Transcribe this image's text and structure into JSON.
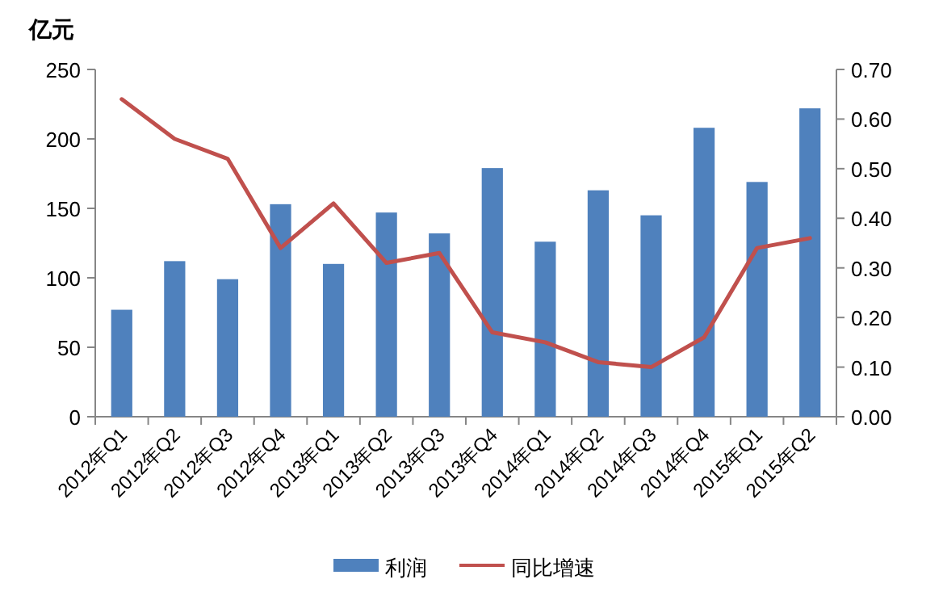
{
  "chart_data": {
    "type": "bar",
    "ylabel": "亿元",
    "legend": "bottom",
    "categories": [
      "2012年Q1",
      "2012年Q2",
      "2012年Q3",
      "2012年Q4",
      "2013年Q1",
      "2013年Q2",
      "2013年Q3",
      "2013年Q4",
      "2014年Q1",
      "2014年Q2",
      "2014年Q3",
      "2014年Q4",
      "2015年Q1",
      "2015年Q2"
    ],
    "series": [
      {
        "name": "利润",
        "color": "#4f81bd",
        "values": [
          77,
          112,
          99,
          153,
          110,
          147,
          132,
          179,
          126,
          163,
          145,
          208,
          169,
          222
        ]
      },
      {
        "name": "同比增速",
        "type": "line",
        "axis": "y2",
        "color": "#c0504d",
        "values": [
          0.64,
          0.56,
          0.52,
          0.34,
          0.43,
          0.31,
          0.33,
          0.17,
          0.15,
          0.11,
          0.1,
          0.16,
          0.34,
          0.36
        ]
      }
    ],
    "ylim": [
      0,
      250
    ],
    "yticks": [
      0,
      50,
      100,
      150,
      200,
      250
    ],
    "y2lim": [
      0,
      0.7
    ],
    "y2ticks": [
      {
        "value": 0,
        "label": "0.00"
      },
      {
        "value": 0.1,
        "label": "0.10"
      },
      {
        "value": 0.2,
        "label": "0.20"
      },
      {
        "value": 0.3,
        "label": "0.30"
      },
      {
        "value": 0.4,
        "label": "0.40"
      },
      {
        "value": 0.5,
        "label": "0.50"
      },
      {
        "value": 0.6,
        "label": "0.60"
      },
      {
        "value": 0.7,
        "label": "0.70"
      }
    ]
  }
}
